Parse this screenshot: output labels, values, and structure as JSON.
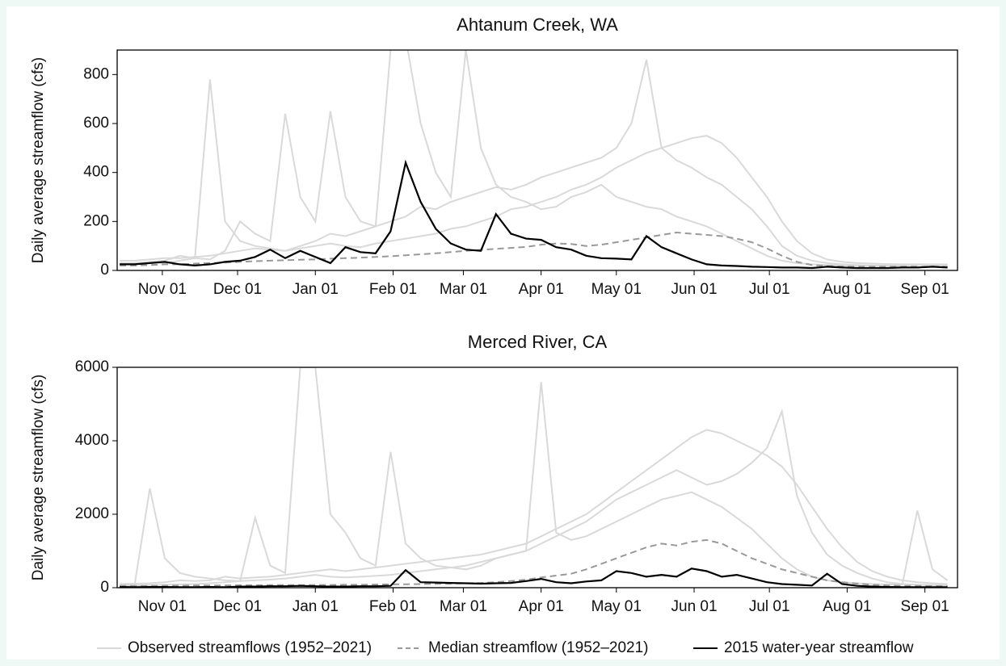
{
  "chart_data": [
    {
      "type": "line",
      "title": "Ahtanum Creek, WA",
      "y_label": "Daily average streamflow (cfs)",
      "x": [
        14,
        20,
        26,
        32,
        38,
        44,
        50,
        56,
        62,
        68,
        74,
        80,
        86,
        92,
        98,
        104,
        110,
        116,
        122,
        128,
        134,
        140,
        146,
        152,
        158,
        164,
        170,
        176,
        182,
        188,
        194,
        200,
        206,
        212,
        218,
        224,
        230,
        236,
        242,
        248,
        254,
        260,
        266,
        272,
        278,
        284,
        290,
        296,
        302,
        308,
        314,
        320,
        326,
        332,
        338,
        344
      ],
      "xlim": [
        13,
        348
      ],
      "ylim": [
        0,
        900
      ],
      "xticks": [
        {
          "value": 31,
          "label": "Nov 01"
        },
        {
          "value": 61,
          "label": "Dec 01"
        },
        {
          "value": 92,
          "label": "Jan 01"
        },
        {
          "value": 123,
          "label": "Feb 01"
        },
        {
          "value": 151,
          "label": "Mar 01"
        },
        {
          "value": 182,
          "label": "Apr 01"
        },
        {
          "value": 212,
          "label": "May 01"
        },
        {
          "value": 243,
          "label": "Jun 01"
        },
        {
          "value": 273,
          "label": "Jul 01"
        },
        {
          "value": 304,
          "label": "Aug 01"
        },
        {
          "value": 335,
          "label": "Sep 01"
        }
      ],
      "yticks": [
        0,
        200,
        400,
        600,
        800
      ],
      "series": [
        {
          "name": "Observed streamflows (1952–2021)",
          "color": "#d9d9d9",
          "linestyle": "solid",
          "values": [
            [
              40,
              40,
              45,
              50,
              50,
              55,
              60,
              70,
              80,
              90,
              85,
              80,
              90,
              100,
              110,
              100,
              95,
              110,
              120,
              130,
              140,
              150,
              170,
              180,
              200,
              220,
              250,
              260,
              280,
              300,
              330,
              350,
              380,
              420,
              450,
              480,
              500,
              520,
              540,
              550,
              520,
              460,
              380,
              300,
              200,
              120,
              70,
              45,
              35,
              30,
              28,
              26,
              25,
              25,
              24,
              24
            ],
            [
              30,
              30,
              35,
              40,
              60,
              50,
              45,
              80,
              200,
              150,
              120,
              640,
              300,
              200,
              650,
              300,
              200,
              180,
              900,
              950,
              600,
              400,
              300,
              900,
              500,
              350,
              300,
              280,
              250,
              260,
              300,
              320,
              350,
              300,
              280,
              260,
              250,
              220,
              200,
              180,
              150,
              120,
              90,
              60,
              40,
              30,
              25,
              22,
              20,
              20,
              20,
              20,
              22,
              25,
              25,
              25
            ],
            [
              25,
              30,
              35,
              30,
              40,
              50,
              780,
              200,
              120,
              100,
              90,
              80,
              100,
              120,
              150,
              140,
              160,
              180,
              200,
              220,
              260,
              250,
              280,
              300,
              320,
              340,
              330,
              350,
              380,
              400,
              420,
              440,
              460,
              500,
              600,
              860,
              500,
              450,
              420,
              380,
              350,
              300,
              250,
              180,
              100,
              60,
              40,
              30,
              25,
              22,
              20,
              20,
              20,
              22,
              22,
              22
            ]
          ]
        },
        {
          "name": "Median streamflow (1952–2021)",
          "color": "#999999",
          "linestyle": "dashed",
          "values": [
            20,
            20,
            22,
            25,
            25,
            28,
            30,
            32,
            35,
            38,
            40,
            42,
            44,
            45,
            48,
            50,
            52,
            55,
            58,
            62,
            66,
            70,
            75,
            80,
            84,
            88,
            92,
            96,
            105,
            110,
            108,
            100,
            105,
            115,
            125,
            135,
            145,
            155,
            150,
            145,
            140,
            130,
            115,
            90,
            60,
            35,
            22,
            18,
            16,
            15,
            15,
            15,
            15,
            15,
            15,
            15
          ]
        },
        {
          "name": "2015 water-year streamflow",
          "color": "#000000",
          "linestyle": "solid",
          "values": [
            25,
            25,
            30,
            35,
            25,
            20,
            25,
            35,
            40,
            55,
            85,
            50,
            80,
            55,
            30,
            95,
            75,
            70,
            160,
            440,
            280,
            170,
            110,
            85,
            80,
            230,
            150,
            130,
            125,
            95,
            85,
            60,
            50,
            48,
            45,
            140,
            95,
            70,
            45,
            25,
            20,
            18,
            15,
            14,
            12,
            12,
            10,
            15,
            12,
            10,
            10,
            10,
            12,
            12,
            15,
            12
          ]
        }
      ]
    },
    {
      "type": "line",
      "title": "Merced River, CA",
      "y_label": "Daily average streamflow (cfs)",
      "x": [
        14,
        20,
        26,
        32,
        38,
        44,
        50,
        56,
        62,
        68,
        74,
        80,
        86,
        92,
        98,
        104,
        110,
        116,
        122,
        128,
        134,
        140,
        146,
        152,
        158,
        164,
        170,
        176,
        182,
        188,
        194,
        200,
        206,
        212,
        218,
        224,
        230,
        236,
        242,
        248,
        254,
        260,
        266,
        272,
        278,
        284,
        290,
        296,
        302,
        308,
        314,
        320,
        326,
        332,
        338,
        344
      ],
      "xlim": [
        13,
        348
      ],
      "ylim": [
        0,
        6000
      ],
      "xticks": [
        {
          "value": 31,
          "label": "Nov 01"
        },
        {
          "value": 61,
          "label": "Dec 01"
        },
        {
          "value": 92,
          "label": "Jan 01"
        },
        {
          "value": 123,
          "label": "Feb 01"
        },
        {
          "value": 151,
          "label": "Mar 01"
        },
        {
          "value": 182,
          "label": "Apr 01"
        },
        {
          "value": 212,
          "label": "May 01"
        },
        {
          "value": 243,
          "label": "Jun 01"
        },
        {
          "value": 273,
          "label": "Jul 01"
        },
        {
          "value": 304,
          "label": "Aug 01"
        },
        {
          "value": 335,
          "label": "Sep 01"
        }
      ],
      "yticks": [
        0,
        2000,
        4000,
        6000
      ],
      "series": [
        {
          "color": "#d9d9d9",
          "linestyle": "solid",
          "values": [
            [
              100,
              110,
              120,
              150,
              200,
              180,
              200,
              300,
              250,
              280,
              300,
              350,
              400,
              450,
              500,
              450,
              500,
              550,
              600,
              650,
              700,
              750,
              800,
              850,
              900,
              1000,
              1100,
              1200,
              1400,
              1600,
              1800,
              2000,
              2300,
              2600,
              2900,
              3200,
              3500,
              3800,
              4100,
              4300,
              4200,
              4000,
              3800,
              3600,
              3300,
              2800,
              2200,
              1600,
              1100,
              700,
              450,
              300,
              200,
              150,
              120,
              100
            ],
            [
              80,
              90,
              2700,
              800,
              400,
              300,
              250,
              200,
              180,
              1900,
              600,
              400,
              6000,
              6000,
              2000,
              1500,
              800,
              600,
              3700,
              1200,
              800,
              600,
              550,
              500,
              600,
              800,
              900,
              1000,
              5600,
              1500,
              1300,
              1400,
              1600,
              1800,
              2000,
              2200,
              2400,
              2500,
              2600,
              2400,
              2200,
              1900,
              1600,
              1200,
              800,
              500,
              300,
              200,
              150,
              120,
              100,
              90,
              90,
              2100,
              500,
              200
            ],
            [
              50,
              60,
              70,
              80,
              90,
              100,
              120,
              150,
              180,
              200,
              220,
              250,
              300,
              350,
              300,
              280,
              300,
              320,
              350,
              400,
              450,
              500,
              550,
              600,
              700,
              800,
              900,
              1000,
              1200,
              1400,
              1600,
              1800,
              2100,
              2400,
              2600,
              2800,
              3000,
              3200,
              3000,
              2800,
              2900,
              3100,
              3400,
              3800,
              4800,
              2500,
              1500,
              900,
              600,
              400,
              250,
              150,
              100,
              80,
              70,
              60
            ]
          ]
        },
        {
          "color": "#999999",
          "linestyle": "dashed",
          "values": [
            50,
            50,
            50,
            55,
            55,
            60,
            60,
            60,
            65,
            65,
            70,
            70,
            70,
            75,
            75,
            80,
            80,
            85,
            90,
            95,
            100,
            105,
            110,
            120,
            130,
            150,
            180,
            220,
            280,
            330,
            380,
            500,
            650,
            800,
            950,
            1100,
            1200,
            1150,
            1250,
            1300,
            1200,
            1000,
            800,
            650,
            500,
            400,
            300,
            200,
            150,
            110,
            80,
            60,
            50,
            50,
            45,
            45
          ]
        },
        {
          "color": "#000000",
          "linestyle": "solid",
          "values": [
            20,
            15,
            20,
            20,
            15,
            15,
            20,
            15,
            30,
            30,
            40,
            40,
            50,
            40,
            30,
            30,
            40,
            40,
            50,
            480,
            150,
            140,
            130,
            120,
            110,
            120,
            130,
            180,
            240,
            150,
            120,
            170,
            200,
            450,
            400,
            300,
            350,
            300,
            520,
            450,
            300,
            350,
            250,
            150,
            100,
            80,
            60,
            380,
            100,
            50,
            30,
            20,
            15,
            15,
            15,
            15
          ]
        }
      ]
    }
  ]
}
